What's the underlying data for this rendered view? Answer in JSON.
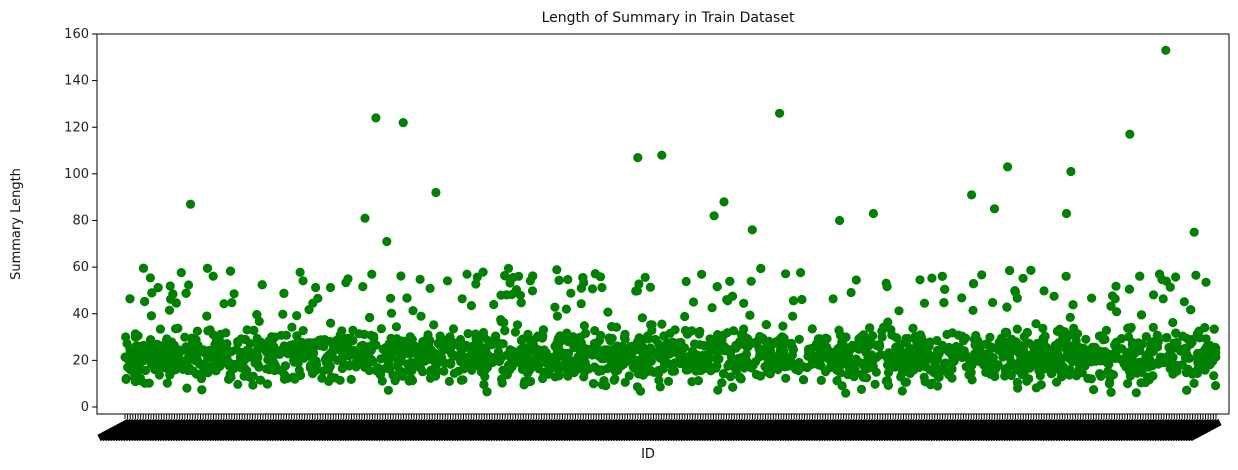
{
  "chart_data": {
    "type": "scatter",
    "title": "Length of Summary in Train Dataset",
    "xlabel": "ID",
    "ylabel": "Summary Length",
    "ylim": [
      -3,
      160
    ],
    "yticks": [
      0,
      20,
      40,
      60,
      80,
      100,
      120,
      140,
      160
    ],
    "grid": false,
    "marker_color": "#008000",
    "x_tick_labels_note": "dense overlapping tick labels (unreadable)",
    "x_positions_unit": "sample index fraction 0-1",
    "outliers": [
      {
        "x": 0.06,
        "y": 87
      },
      {
        "x": 0.22,
        "y": 81
      },
      {
        "x": 0.23,
        "y": 124
      },
      {
        "x": 0.255,
        "y": 122
      },
      {
        "x": 0.24,
        "y": 71
      },
      {
        "x": 0.285,
        "y": 92
      },
      {
        "x": 0.47,
        "y": 107
      },
      {
        "x": 0.492,
        "y": 108
      },
      {
        "x": 0.54,
        "y": 82
      },
      {
        "x": 0.549,
        "y": 88
      },
      {
        "x": 0.575,
        "y": 76
      },
      {
        "x": 0.6,
        "y": 126
      },
      {
        "x": 0.655,
        "y": 80
      },
      {
        "x": 0.686,
        "y": 83
      },
      {
        "x": 0.776,
        "y": 91
      },
      {
        "x": 0.797,
        "y": 85
      },
      {
        "x": 0.809,
        "y": 103
      },
      {
        "x": 0.863,
        "y": 83
      },
      {
        "x": 0.867,
        "y": 101
      },
      {
        "x": 0.921,
        "y": 117
      },
      {
        "x": 0.954,
        "y": 153
      },
      {
        "x": 0.98,
        "y": 75
      }
    ],
    "bulk_range": [
      5,
      60
    ]
  }
}
